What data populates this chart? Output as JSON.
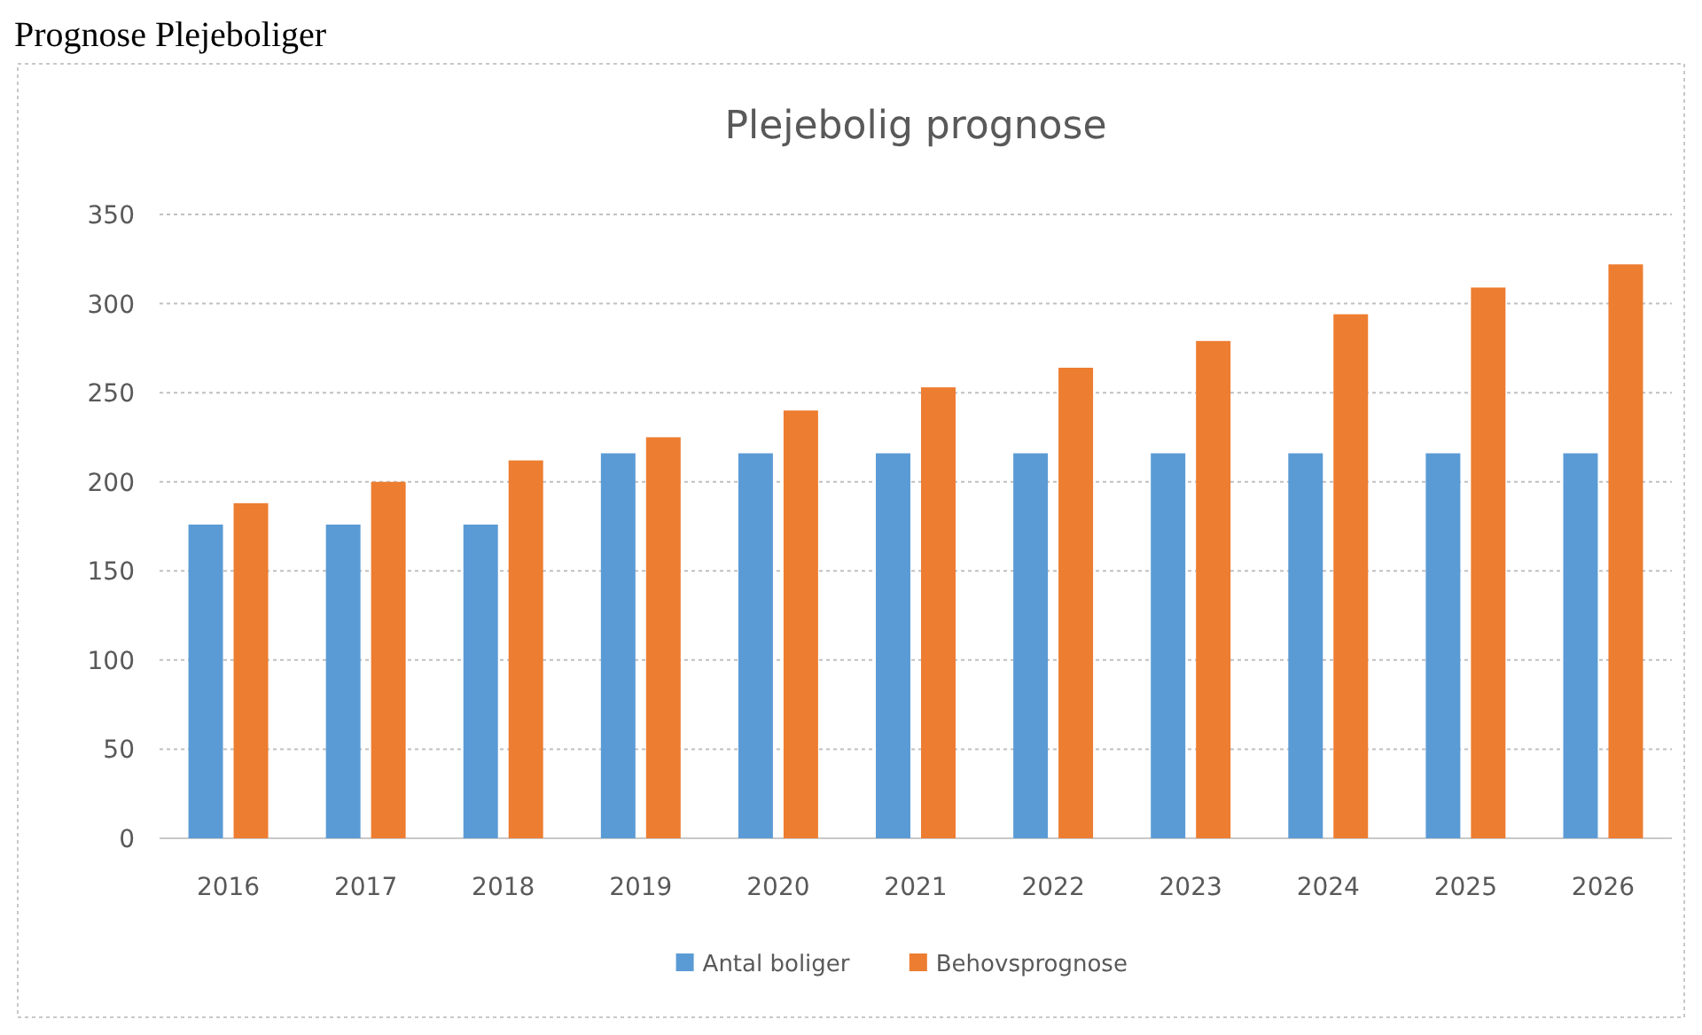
{
  "chart_data": {
    "type": "bar",
    "title": "Plejebolig prognose",
    "annotations": [
      "Prognose Plejeboliger"
    ],
    "categories": [
      "2016",
      "2017",
      "2018",
      "2019",
      "2020",
      "2021",
      "2022",
      "2023",
      "2024",
      "2025",
      "2026"
    ],
    "series": [
      {
        "name": "Antal boliger",
        "color": "#5b9bd5",
        "values": [
          176,
          176,
          176,
          216,
          216,
          216,
          216,
          216,
          216,
          216,
          216
        ]
      },
      {
        "name": "Behovsprognose",
        "color": "#ed7d31",
        "values": [
          188,
          200,
          212,
          225,
          240,
          253,
          264,
          279,
          294,
          309,
          322
        ]
      }
    ],
    "ylim": [
      0,
      350
    ],
    "yticks": [
      0,
      50,
      100,
      150,
      200,
      250,
      300,
      350
    ],
    "grid": "y",
    "legend": "bottom"
  }
}
